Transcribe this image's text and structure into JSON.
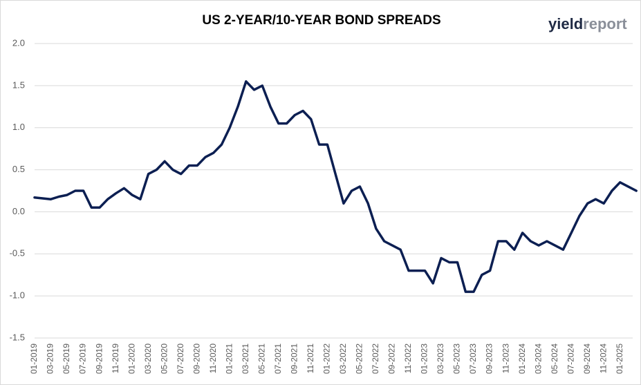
{
  "chart_data": {
    "type": "line",
    "title": "US 2-YEAR/10-YEAR BOND SPREADS",
    "logo": [
      "yield",
      "report"
    ],
    "categories": [
      "01-2019",
      null,
      "03-2019",
      null,
      "05-2019",
      null,
      "07-2019",
      null,
      "09-2019",
      null,
      "11-2019",
      null,
      "01-2020",
      null,
      "03-2020",
      null,
      "05-2020",
      null,
      "07-2020",
      null,
      "09-2020",
      null,
      "11-2020",
      null,
      "01-2021",
      null,
      "03-2021",
      null,
      "05-2021",
      null,
      "07-2021",
      null,
      "09-2021",
      null,
      "11-2021",
      null,
      "01-2022",
      null,
      "03-2022",
      null,
      "05-2022",
      null,
      "07-2022",
      null,
      "09-2022",
      null,
      "11-2022",
      null,
      "01-2023",
      null,
      "03-2023",
      null,
      "05-2023",
      null,
      "07-2023",
      null,
      "09-2023",
      null,
      "11-2023",
      null,
      "01-2024",
      null,
      "03-2024",
      null,
      "05-2024",
      null,
      "07-2024",
      null,
      "09-2024",
      null,
      "11-2024",
      null,
      "01-2025",
      null,
      null
    ],
    "series": [
      {
        "color": "#0c1f52",
        "values": [
          0.17,
          0.16,
          0.15,
          0.18,
          0.2,
          0.25,
          0.25,
          0.05,
          0.05,
          0.15,
          0.22,
          0.28,
          0.2,
          0.15,
          0.45,
          0.5,
          0.6,
          0.5,
          0.45,
          0.55,
          0.55,
          0.65,
          0.7,
          0.8,
          1.0,
          1.25,
          1.55,
          1.45,
          1.5,
          1.25,
          1.05,
          1.05,
          1.15,
          1.2,
          1.1,
          0.8,
          0.8,
          0.45,
          0.1,
          0.25,
          0.3,
          0.1,
          -0.2,
          -0.35,
          -0.4,
          -0.45,
          -0.7,
          -0.7,
          -0.7,
          -0.85,
          -0.55,
          -0.6,
          -0.6,
          -0.95,
          -0.95,
          -0.75,
          -0.7,
          -0.35,
          -0.35,
          -0.45,
          -0.25,
          -0.35,
          -0.4,
          -0.35,
          -0.4,
          -0.45,
          -0.25,
          -0.05,
          0.1,
          0.15,
          0.1,
          0.25,
          0.35,
          0.3,
          0.25
        ]
      }
    ],
    "ylim": [
      -1.5,
      2.0
    ],
    "yticks": [
      {
        "value": 2.0,
        "label": "2.0"
      },
      1.5,
      {
        "value": 1.0,
        "label": "1.0"
      },
      0.5,
      {
        "value": 0.0,
        "label": "0.0"
      },
      -0.5,
      {
        "value": -1.0,
        "label": "-1.0"
      },
      -1.5
    ],
    "grid": true
  }
}
